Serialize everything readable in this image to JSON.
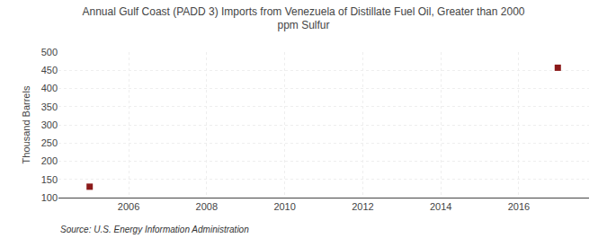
{
  "chart_data": {
    "type": "scatter",
    "title": "Annual Gulf Coast (PADD 3) Imports from Venezuela of Distillate Fuel Oil, Greater than 2000\nppm Sulfur",
    "ylabel": "Thousand Barrels",
    "source": "Source: U.S. Energy Information Administration",
    "x": [
      2005,
      2017
    ],
    "values": [
      130,
      457
    ],
    "color": "#8b1a1a",
    "marker": "square",
    "xlim": [
      2004.2,
      2017.8
    ],
    "xticks": [
      2006,
      2008,
      2010,
      2012,
      2014,
      2016
    ],
    "ylim": [
      100,
      500
    ],
    "yticks": [
      100,
      150,
      200,
      250,
      300,
      350,
      400,
      450,
      500
    ],
    "grid": true
  }
}
